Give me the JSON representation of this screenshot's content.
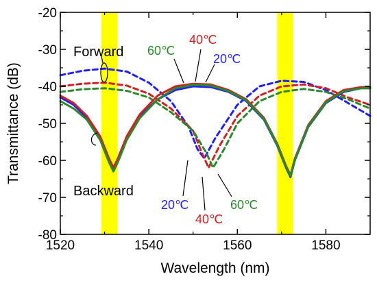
{
  "chart_data": {
    "type": "line",
    "xlabel": "Wavelength (nm)",
    "ylabel": "Transmittance (dB)",
    "xlim": [
      1520,
      1590
    ],
    "ylim": [
      -80,
      -20
    ],
    "xticks": [
      1520,
      1540,
      1560,
      1580
    ],
    "yticks": [
      -80,
      -70,
      -60,
      -50,
      -40,
      -30,
      -20
    ],
    "grid": false,
    "highlight_bands": [
      {
        "x": [
          1529.3,
          1532.9
        ],
        "color": "#ffff00"
      },
      {
        "x": [
          1569.0,
          1572.6
        ],
        "color": "#ffff00"
      }
    ],
    "series": [
      {
        "name": "20°C",
        "direction": "Forward",
        "style": "dashed",
        "color": "#1f1fff",
        "x": [
          1520,
          1525,
          1530,
          1535,
          1540,
          1545,
          1549,
          1551,
          1552.5,
          1555,
          1560,
          1565,
          1570,
          1575,
          1580,
          1585,
          1590
        ],
        "y": [
          -37,
          -35.8,
          -35.2,
          -36,
          -39,
          -44,
          -51,
          -57,
          -59.5,
          -54,
          -45,
          -40,
          -38.5,
          -38.8,
          -41,
          -44.5,
          -48
        ]
      },
      {
        "name": "40°C",
        "direction": "Forward",
        "style": "dashed",
        "color": "#d42020",
        "x": [
          1520,
          1525,
          1530,
          1535,
          1540,
          1545,
          1550,
          1552,
          1553.5,
          1556,
          1560,
          1565,
          1570,
          1575,
          1580,
          1585,
          1590
        ],
        "y": [
          -40,
          -39.3,
          -39,
          -39.8,
          -42,
          -46,
          -52,
          -58,
          -62,
          -56,
          -48,
          -42.5,
          -40,
          -39.5,
          -40.5,
          -43,
          -45
        ]
      },
      {
        "name": "60°C",
        "direction": "Forward",
        "style": "dashed",
        "color": "#2a8a2a",
        "x": [
          1520,
          1525,
          1530,
          1535,
          1540,
          1545,
          1550,
          1553,
          1554.5,
          1557,
          1560,
          1565,
          1570,
          1575,
          1580,
          1585,
          1590
        ],
        "y": [
          -41.5,
          -40.8,
          -40.5,
          -41.2,
          -43,
          -47,
          -52,
          -58,
          -62,
          -57,
          -50,
          -44,
          -41.5,
          -40.7,
          -41.5,
          -43.5,
          -46
        ]
      },
      {
        "name": "20°C",
        "direction": "Backward",
        "style": "solid",
        "color": "#1f1fff",
        "x": [
          1520,
          1523,
          1526,
          1529,
          1531,
          1532,
          1533,
          1535,
          1538,
          1542,
          1546,
          1550,
          1554,
          1558,
          1562,
          1566,
          1569,
          1571,
          1572,
          1573,
          1576,
          1580,
          1584,
          1588,
          1590
        ],
        "y": [
          -43,
          -45,
          -48.5,
          -54,
          -60,
          -62.5,
          -60,
          -54,
          -48,
          -43.5,
          -41,
          -40,
          -40.2,
          -41.5,
          -44,
          -49,
          -56,
          -62,
          -64.5,
          -60,
          -51,
          -44.5,
          -41.5,
          -40.5,
          -40.5
        ]
      },
      {
        "name": "40°C",
        "direction": "Backward",
        "style": "solid",
        "color": "#d42020",
        "x": [
          1520,
          1523,
          1526,
          1529,
          1531,
          1532,
          1533,
          1535,
          1538,
          1542,
          1546,
          1550,
          1554,
          1558,
          1562,
          1566,
          1569,
          1571,
          1572,
          1573,
          1576,
          1580,
          1584,
          1588,
          1590
        ],
        "y": [
          -42.5,
          -44.5,
          -48,
          -53.5,
          -59.5,
          -62,
          -59.5,
          -53.5,
          -47.5,
          -42.5,
          -40,
          -39.3,
          -39.5,
          -41,
          -43.5,
          -48.5,
          -55.5,
          -61.5,
          -64,
          -59.5,
          -50.5,
          -44,
          -41,
          -40.2,
          -40.2
        ]
      },
      {
        "name": "60°C",
        "direction": "Backward",
        "style": "solid",
        "color": "#2a8a2a",
        "x": [
          1520,
          1523,
          1526,
          1529,
          1531,
          1532,
          1533,
          1535,
          1538,
          1542,
          1546,
          1550,
          1554,
          1558,
          1562,
          1566,
          1569,
          1571,
          1572,
          1573,
          1576,
          1580,
          1584,
          1588,
          1590
        ],
        "y": [
          -44,
          -46,
          -49,
          -54.5,
          -60.5,
          -63,
          -60.5,
          -54.5,
          -48.5,
          -43.5,
          -40.5,
          -39.6,
          -39.8,
          -41.3,
          -43.8,
          -48.8,
          -55.8,
          -61.8,
          -64.2,
          -59.8,
          -50.8,
          -44.3,
          -41.3,
          -40.5,
          -40.5
        ]
      }
    ],
    "annotations": [
      {
        "text": "Forward",
        "color": "#000000"
      },
      {
        "text": "Backward",
        "color": "#000000"
      },
      {
        "text": "60℃",
        "color": "#2a8a2a"
      },
      {
        "text": "40℃",
        "color": "#d42020"
      },
      {
        "text": "20℃",
        "color": "#1f1fff"
      },
      {
        "text": "20℃",
        "color": "#1f1fff"
      },
      {
        "text": "40℃",
        "color": "#d42020"
      },
      {
        "text": "60℃",
        "color": "#2a8a2a"
      }
    ]
  }
}
